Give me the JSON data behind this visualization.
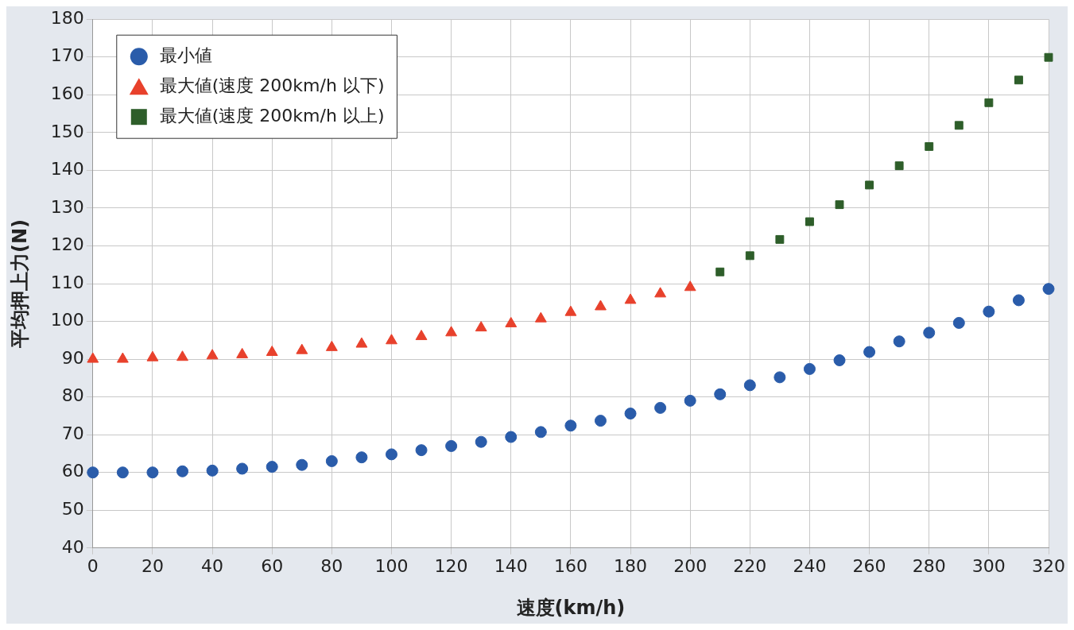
{
  "chart_data": {
    "type": "scatter",
    "xlabel": "速度(km/h)",
    "ylabel": "平均押上力(N)",
    "xlim": [
      0,
      320
    ],
    "xticks": [
      0,
      20,
      40,
      60,
      80,
      100,
      120,
      140,
      160,
      180,
      200,
      220,
      240,
      260,
      280,
      300,
      320
    ],
    "ylim": [
      40,
      180
    ],
    "yticks": [
      40,
      50,
      60,
      70,
      80,
      90,
      100,
      110,
      120,
      130,
      140,
      150,
      160,
      170,
      180
    ],
    "grid": true,
    "legend": "top left",
    "series": [
      {
        "name": "最小値",
        "color": "#2a5caa",
        "marker": "circle",
        "x": [
          0,
          10,
          20,
          30,
          40,
          50,
          60,
          70,
          80,
          90,
          100,
          110,
          120,
          130,
          140,
          150,
          160,
          170,
          180,
          190,
          200,
          210,
          220,
          230,
          240,
          250,
          260,
          270,
          280,
          290,
          300,
          310,
          320
        ],
        "values": [
          60,
          60,
          60,
          60.3,
          60.5,
          61,
          61.5,
          62,
          63,
          64,
          64.8,
          65.9,
          67,
          68.1,
          69.4,
          70.7,
          72.4,
          73.7,
          75.6,
          77.1,
          79,
          80.7,
          83.1,
          85.2,
          87.4,
          89.7,
          91.9,
          94.7,
          97,
          99.6,
          102.6,
          105.6,
          108.6
        ]
      },
      {
        "name": "最大値(速度 200km/h 以下)",
        "color": "#e8412c",
        "marker": "triangle",
        "x": [
          0,
          10,
          20,
          30,
          40,
          50,
          60,
          70,
          80,
          90,
          100,
          110,
          120,
          130,
          140,
          150,
          160,
          170,
          180,
          190,
          200
        ],
        "values": [
          90,
          90,
          90.4,
          90.5,
          90.9,
          91.2,
          91.8,
          92.3,
          93.1,
          94,
          94.9,
          96,
          97,
          98.3,
          99.4,
          100.7,
          102.4,
          103.9,
          105.6,
          107.3,
          109
        ]
      },
      {
        "name": "最大値(速度 200km/h 以上)",
        "color": "#2e5e2a",
        "marker": "square",
        "x": [
          210,
          220,
          230,
          240,
          250,
          260,
          270,
          280,
          290,
          300,
          310,
          320
        ],
        "values": [
          113.1,
          117.4,
          121.7,
          126.4,
          130.9,
          136.1,
          141.2,
          146.3,
          151.9,
          157.9,
          163.9,
          169.9
        ]
      }
    ]
  }
}
